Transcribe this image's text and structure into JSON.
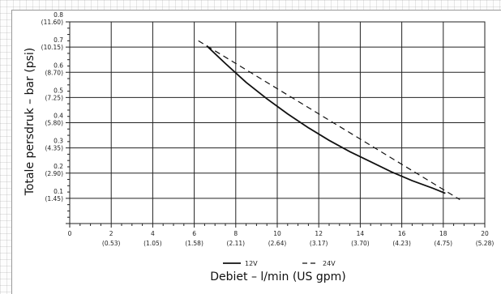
{
  "chart_data": {
    "type": "line",
    "xlabel": "Debiet – l/min (US gpm)",
    "ylabel": "Totale persdruk – bar (psi)",
    "xlim": [
      0,
      20
    ],
    "ylim": [
      0,
      0.8
    ],
    "grid": true,
    "legend_position": "bottom-center",
    "x_ticks": [
      {
        "value": 0,
        "label": "0",
        "sub": ""
      },
      {
        "value": 2,
        "label": "2",
        "sub": "(0.53)"
      },
      {
        "value": 4,
        "label": "4",
        "sub": "(1.05)"
      },
      {
        "value": 6,
        "label": "6",
        "sub": "(1.58)"
      },
      {
        "value": 8,
        "label": "8",
        "sub": "(2.11)"
      },
      {
        "value": 10,
        "label": "10",
        "sub": "(2.64)"
      },
      {
        "value": 12,
        "label": "12",
        "sub": "(3.17)"
      },
      {
        "value": 14,
        "label": "14",
        "sub": "(3.70)"
      },
      {
        "value": 16,
        "label": "16",
        "sub": "(4.23)"
      },
      {
        "value": 18,
        "label": "18",
        "sub": "(4.75)"
      },
      {
        "value": 20,
        "label": "20",
        "sub": "(5.28)"
      }
    ],
    "y_ticks": [
      {
        "value": 0.1,
        "label": "0.1",
        "sub": "(1.45)"
      },
      {
        "value": 0.2,
        "label": "0.2",
        "sub": "(2.90)"
      },
      {
        "value": 0.3,
        "label": "0.3",
        "sub": "(4.35)"
      },
      {
        "value": 0.4,
        "label": "0.4",
        "sub": "(5.80)"
      },
      {
        "value": 0.5,
        "label": "0.5",
        "sub": "(7.25)"
      },
      {
        "value": 0.6,
        "label": "0.6",
        "sub": "(8.70)"
      },
      {
        "value": 0.7,
        "label": "0.7",
        "sub": "(10.15)"
      },
      {
        "value": 0.8,
        "label": "0.8",
        "sub": "(11.60)"
      }
    ],
    "series": [
      {
        "name": "12V",
        "style": "solid",
        "color": "#111111",
        "x": [
          6.6,
          7.5,
          8.5,
          9.5,
          10.5,
          11.5,
          12.5,
          13.5,
          14.5,
          15.5,
          16.5,
          17.5,
          18.1
        ],
        "y": [
          0.705,
          0.635,
          0.56,
          0.495,
          0.435,
          0.38,
          0.33,
          0.285,
          0.245,
          0.205,
          0.17,
          0.14,
          0.12
        ]
      },
      {
        "name": "24V",
        "style": "dashed",
        "color": "#111111",
        "x": [
          6.2,
          18.8
        ],
        "y": [
          0.725,
          0.095
        ]
      }
    ]
  }
}
